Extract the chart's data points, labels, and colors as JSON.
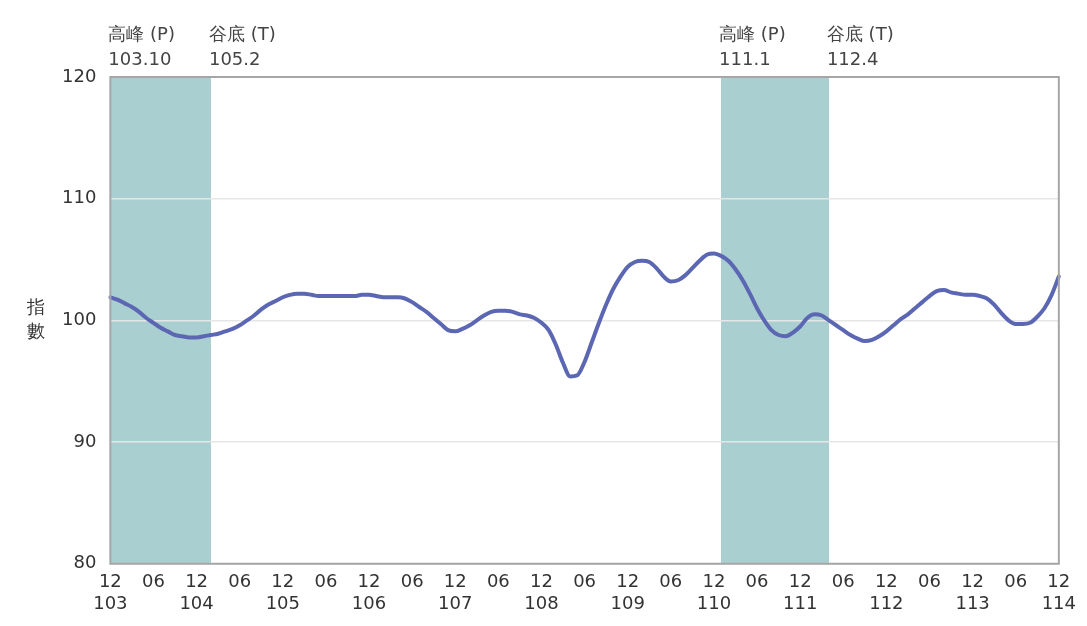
{
  "chart_data": {
    "type": "line",
    "ylabel": "指數",
    "categories": [
      "12\n103",
      null,
      null,
      null,
      null,
      null,
      "06",
      null,
      null,
      null,
      null,
      null,
      "12\n104",
      null,
      null,
      null,
      null,
      null,
      "06",
      null,
      null,
      null,
      null,
      null,
      "12\n105",
      null,
      null,
      null,
      null,
      null,
      "06",
      null,
      null,
      null,
      null,
      null,
      "12\n106",
      null,
      null,
      null,
      null,
      null,
      "06",
      null,
      null,
      null,
      null,
      null,
      "12\n107",
      null,
      null,
      null,
      null,
      null,
      "06",
      null,
      null,
      null,
      null,
      null,
      "12\n108",
      null,
      null,
      null,
      null,
      null,
      "06",
      null,
      null,
      null,
      null,
      null,
      "12\n109",
      null,
      null,
      null,
      null,
      null,
      "06",
      null,
      null,
      null,
      null,
      null,
      "12\n110",
      null,
      null,
      null,
      null,
      null,
      "06",
      null,
      null,
      null,
      null,
      null,
      "12\n111",
      null,
      null,
      null,
      null,
      null,
      "06",
      null,
      null,
      null,
      null,
      null,
      "12\n112",
      null,
      null,
      null,
      null,
      null,
      "06",
      null,
      null,
      null,
      null,
      null,
      "12\n113",
      null,
      null,
      null,
      null,
      null,
      "06",
      null,
      null,
      null,
      null,
      null,
      "12\n114"
    ],
    "series": [
      {
        "color": "#5c67b3",
        "values": [
          101.9,
          101.7,
          101.4,
          101.1,
          100.7,
          100.2,
          99.8,
          99.4,
          99.1,
          98.8,
          98.7,
          98.6,
          98.6,
          98.7,
          98.8,
          98.9,
          99.1,
          99.3,
          99.6,
          100.0,
          100.4,
          100.9,
          101.3,
          101.6,
          101.9,
          102.1,
          102.2,
          102.2,
          102.1,
          102.0,
          102.0,
          102.0,
          102.0,
          102.0,
          102.0,
          102.1,
          102.1,
          102.0,
          101.9,
          101.9,
          101.9,
          101.8,
          101.5,
          101.1,
          100.7,
          100.2,
          99.7,
          99.2,
          99.1,
          99.3,
          99.6,
          100.0,
          100.4,
          100.7,
          100.8,
          100.8,
          100.7,
          100.5,
          100.4,
          100.2,
          99.8,
          99.2,
          98.0,
          96.5,
          95.4,
          95.5,
          96.6,
          98.2,
          99.8,
          101.3,
          102.6,
          103.6,
          104.4,
          104.8,
          104.9,
          104.8,
          104.3,
          103.6,
          103.2,
          103.3,
          103.7,
          104.3,
          104.9,
          105.4,
          105.5,
          105.3,
          104.9,
          104.2,
          103.3,
          102.2,
          101.0,
          100.0,
          99.2,
          98.8,
          98.7,
          99.0,
          99.5,
          100.2,
          100.5,
          100.4,
          100.0,
          99.6,
          99.2,
          98.8,
          98.5,
          98.3,
          98.4,
          98.7,
          99.1,
          99.6,
          100.1,
          100.5,
          101.0,
          101.5,
          102.0,
          102.4,
          102.5,
          102.3,
          102.2,
          102.1,
          102.1,
          102.0,
          101.8,
          101.3,
          100.6,
          100.0,
          99.7,
          99.7,
          99.8,
          100.3,
          101.0,
          102.1,
          103.6
        ]
      }
    ],
    "ylim": [
      80,
      120
    ],
    "yticks": [
      80,
      90,
      100,
      110,
      120
    ],
    "annotations": [
      "高峰 (P)\n103.10",
      "谷底 (T)\n105.2",
      "高峰 (P)\n111.1",
      "谷底 (T)\n112.4"
    ],
    "grid": "y",
    "legend": false,
    "marker": "none",
    "line_style": "solid"
  }
}
